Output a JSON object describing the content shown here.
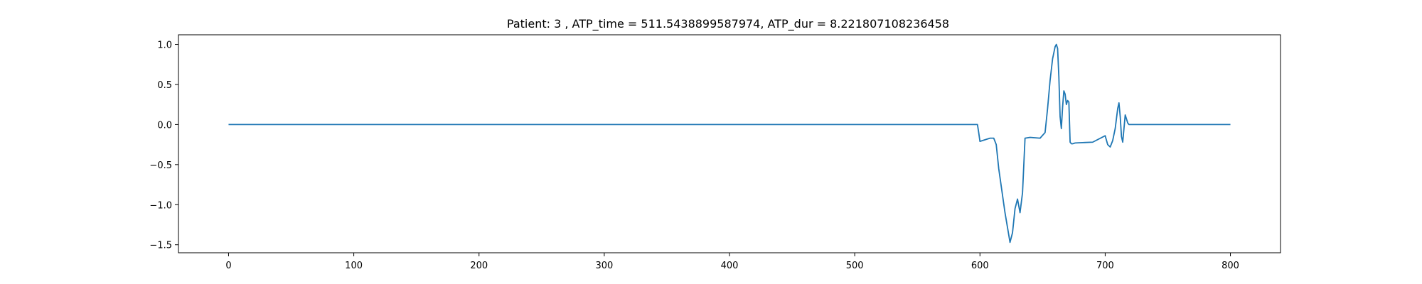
{
  "chart_data": {
    "type": "line",
    "title": "Patient: 3 , ATP_time = 511.5438899587974, ATP_dur = 8.221807108236458",
    "xlabel": "",
    "ylabel": "",
    "xlim": [
      -40,
      840
    ],
    "ylim": [
      -1.6,
      1.12
    ],
    "xticks": [
      0,
      100,
      200,
      300,
      400,
      500,
      600,
      700,
      800
    ],
    "yticks": [
      1.0,
      0.5,
      0.0,
      -0.5,
      -1.0,
      -1.5
    ],
    "ytick_labels": [
      "1.0",
      "0.5",
      "0.0",
      "−0.5",
      "−1.0",
      "−1.5"
    ],
    "grid": false,
    "series": [
      {
        "color": "#1f77b4",
        "x": [
          0,
          100,
          200,
          300,
          400,
          500,
          598,
          599,
          600,
          604,
          608,
          611,
          613,
          615,
          620,
          624,
          626,
          628,
          630,
          632,
          634,
          636,
          640,
          648,
          652,
          654,
          656,
          658,
          660,
          661,
          662,
          663,
          664,
          665,
          666,
          667,
          668,
          669,
          670,
          671,
          672,
          673,
          674,
          676,
          690,
          700,
          702,
          704,
          706,
          708,
          710,
          711,
          712,
          713,
          714,
          715,
          716,
          718,
          719,
          720,
          725,
          760,
          800
        ],
        "y": [
          0,
          0,
          0,
          0,
          0,
          0,
          0,
          -0.1,
          -0.21,
          -0.19,
          -0.17,
          -0.17,
          -0.25,
          -0.55,
          -1.1,
          -1.47,
          -1.35,
          -1.05,
          -0.93,
          -1.1,
          -0.85,
          -0.17,
          -0.16,
          -0.17,
          -0.1,
          0.2,
          0.55,
          0.82,
          0.97,
          1.0,
          0.95,
          0.6,
          0.1,
          -0.05,
          0.22,
          0.42,
          0.38,
          0.25,
          0.3,
          0.28,
          -0.22,
          -0.24,
          -0.24,
          -0.23,
          -0.22,
          -0.14,
          -0.25,
          -0.28,
          -0.2,
          -0.05,
          0.2,
          0.27,
          0.1,
          -0.15,
          -0.22,
          -0.05,
          0.12,
          0.02,
          0.0,
          0.0,
          0.0,
          0.0,
          0.0
        ]
      }
    ]
  }
}
